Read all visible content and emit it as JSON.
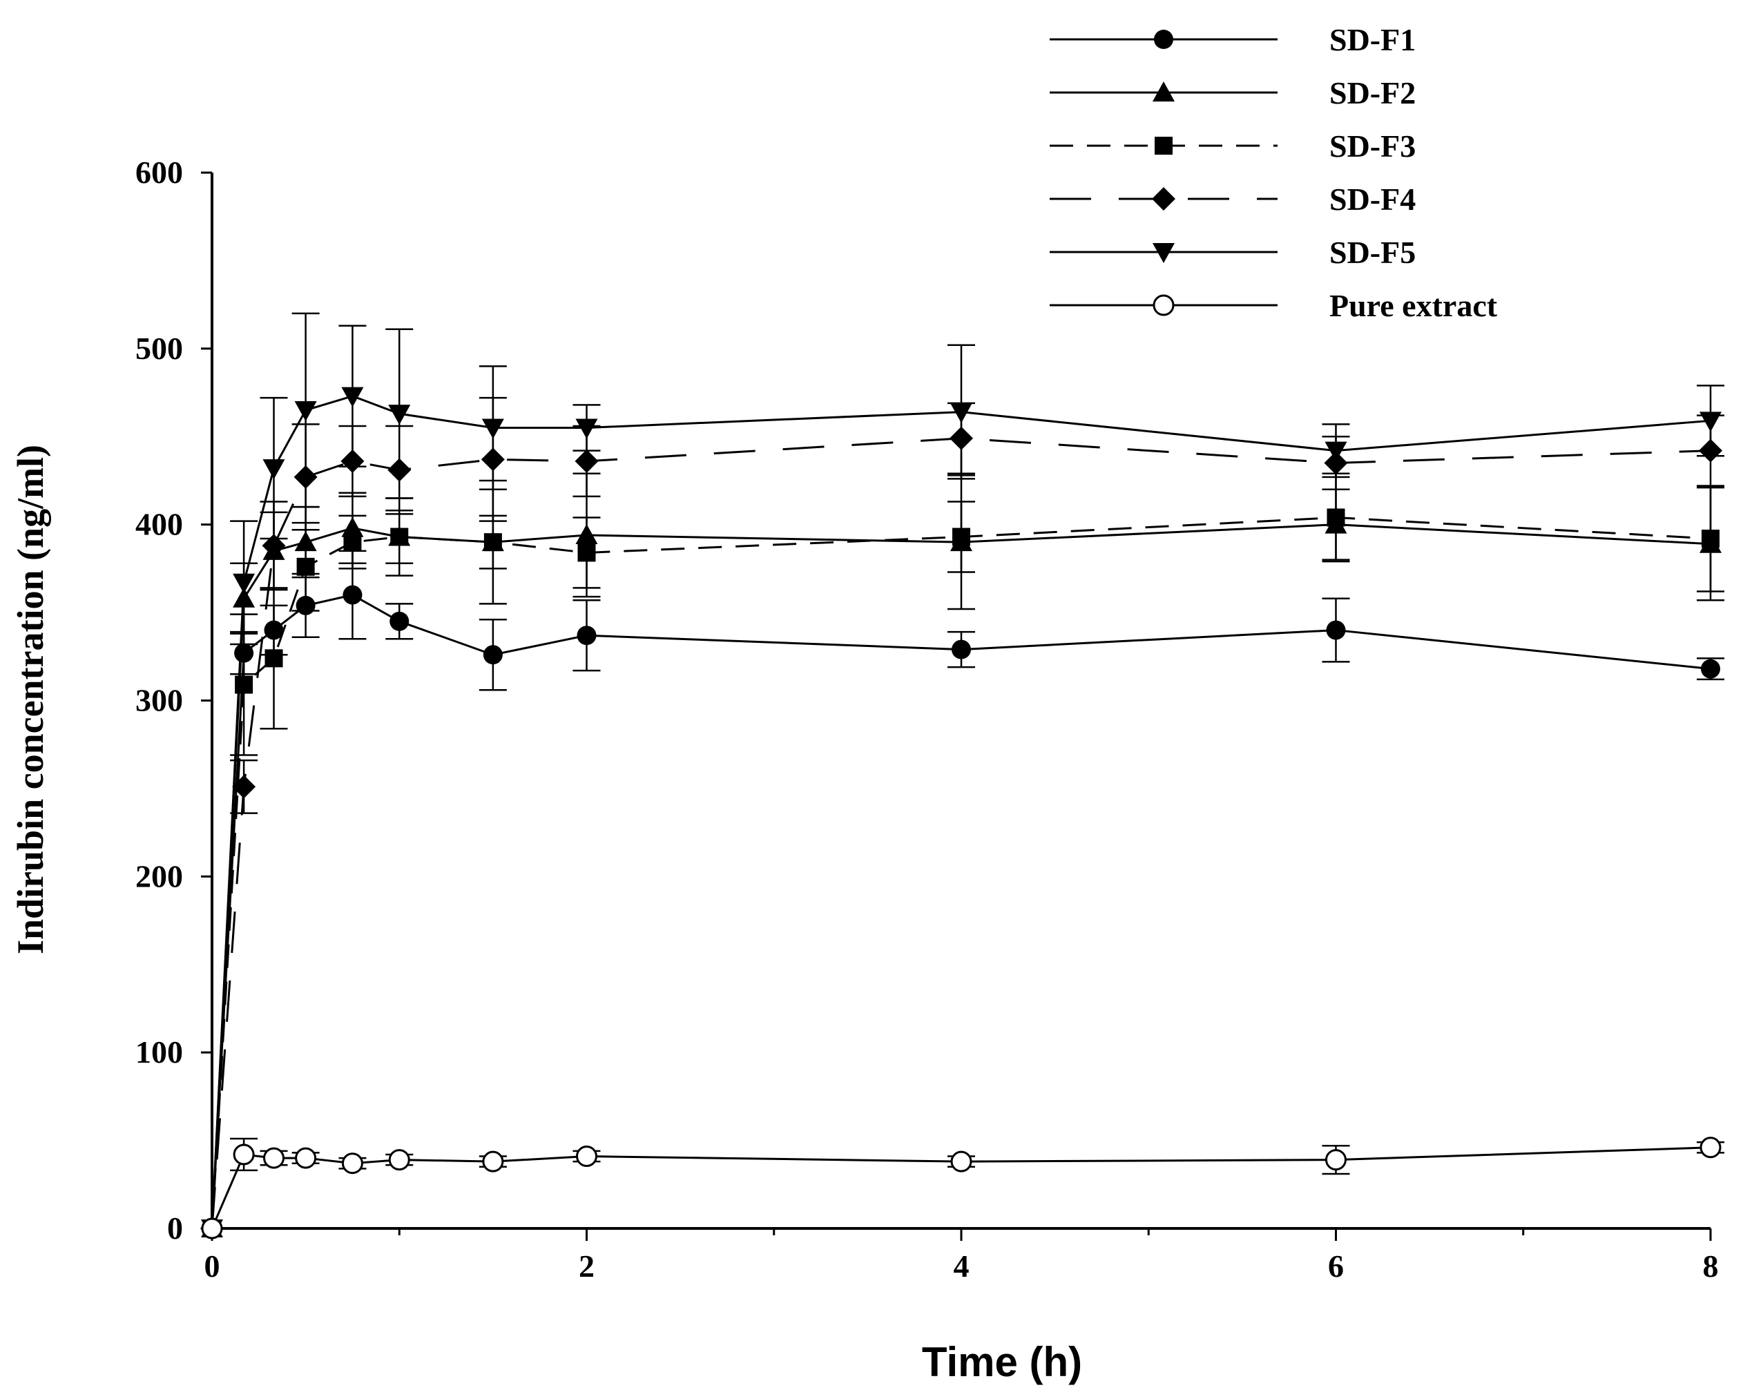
{
  "chart_data": {
    "type": "line",
    "title": "",
    "xlabel": "Time (h)",
    "ylabel": "Indirubin concentration (ng/ml)",
    "xlim": [
      0,
      8
    ],
    "ylim": [
      0,
      600
    ],
    "xticks": [
      0,
      2,
      4,
      6,
      8
    ],
    "yticks": [
      0,
      100,
      200,
      300,
      400,
      500,
      600
    ],
    "grid": false,
    "legend_position": "top-right",
    "x": [
      0,
      0.17,
      0.33,
      0.5,
      0.75,
      1,
      1.5,
      2,
      4,
      6,
      8
    ],
    "series": [
      {
        "name": "SD-F1",
        "marker": "circle",
        "dash": "solid",
        "values": [
          0,
          327,
          340,
          354,
          360,
          345,
          326,
          337,
          329,
          340,
          318
        ],
        "errors": [
          0,
          12,
          14,
          18,
          25,
          10,
          20,
          20,
          10,
          18,
          6
        ]
      },
      {
        "name": "SD-F2",
        "marker": "triangle-up",
        "dash": "solid",
        "values": [
          0,
          358,
          385,
          390,
          398,
          393,
          390,
          394,
          390,
          400,
          389
        ],
        "errors": [
          0,
          20,
          22,
          20,
          20,
          22,
          35,
          35,
          38,
          20,
          32
        ]
      },
      {
        "name": "SD-F3",
        "marker": "square",
        "dash": "dashed",
        "values": [
          0,
          309,
          324,
          376,
          390,
          393,
          390,
          384,
          393,
          404,
          392
        ],
        "errors": [
          0,
          40,
          40,
          25,
          15,
          15,
          15,
          20,
          20,
          25,
          30
        ]
      },
      {
        "name": "SD-F4",
        "marker": "diamond",
        "dash": "longdash",
        "values": [
          0,
          251,
          388,
          427,
          436,
          431,
          437,
          436,
          449,
          435,
          442
        ],
        "errors": [
          0,
          15,
          25,
          30,
          20,
          25,
          35,
          20,
          20,
          15,
          20
        ]
      },
      {
        "name": "SD-F5",
        "marker": "triangle-down",
        "dash": "solid",
        "values": [
          0,
          367,
          432,
          465,
          473,
          463,
          455,
          455,
          464,
          442,
          459
        ],
        "errors": [
          0,
          35,
          40,
          55,
          40,
          48,
          35,
          13,
          38,
          15,
          20
        ]
      },
      {
        "name": "Pure extract",
        "marker": "open-circle",
        "dash": "solid",
        "values": [
          0,
          42,
          40,
          40,
          37,
          39,
          38,
          41,
          38,
          39,
          46
        ],
        "errors": [
          0,
          9,
          4,
          3,
          3,
          3,
          3,
          3,
          3,
          8,
          3
        ]
      }
    ]
  }
}
